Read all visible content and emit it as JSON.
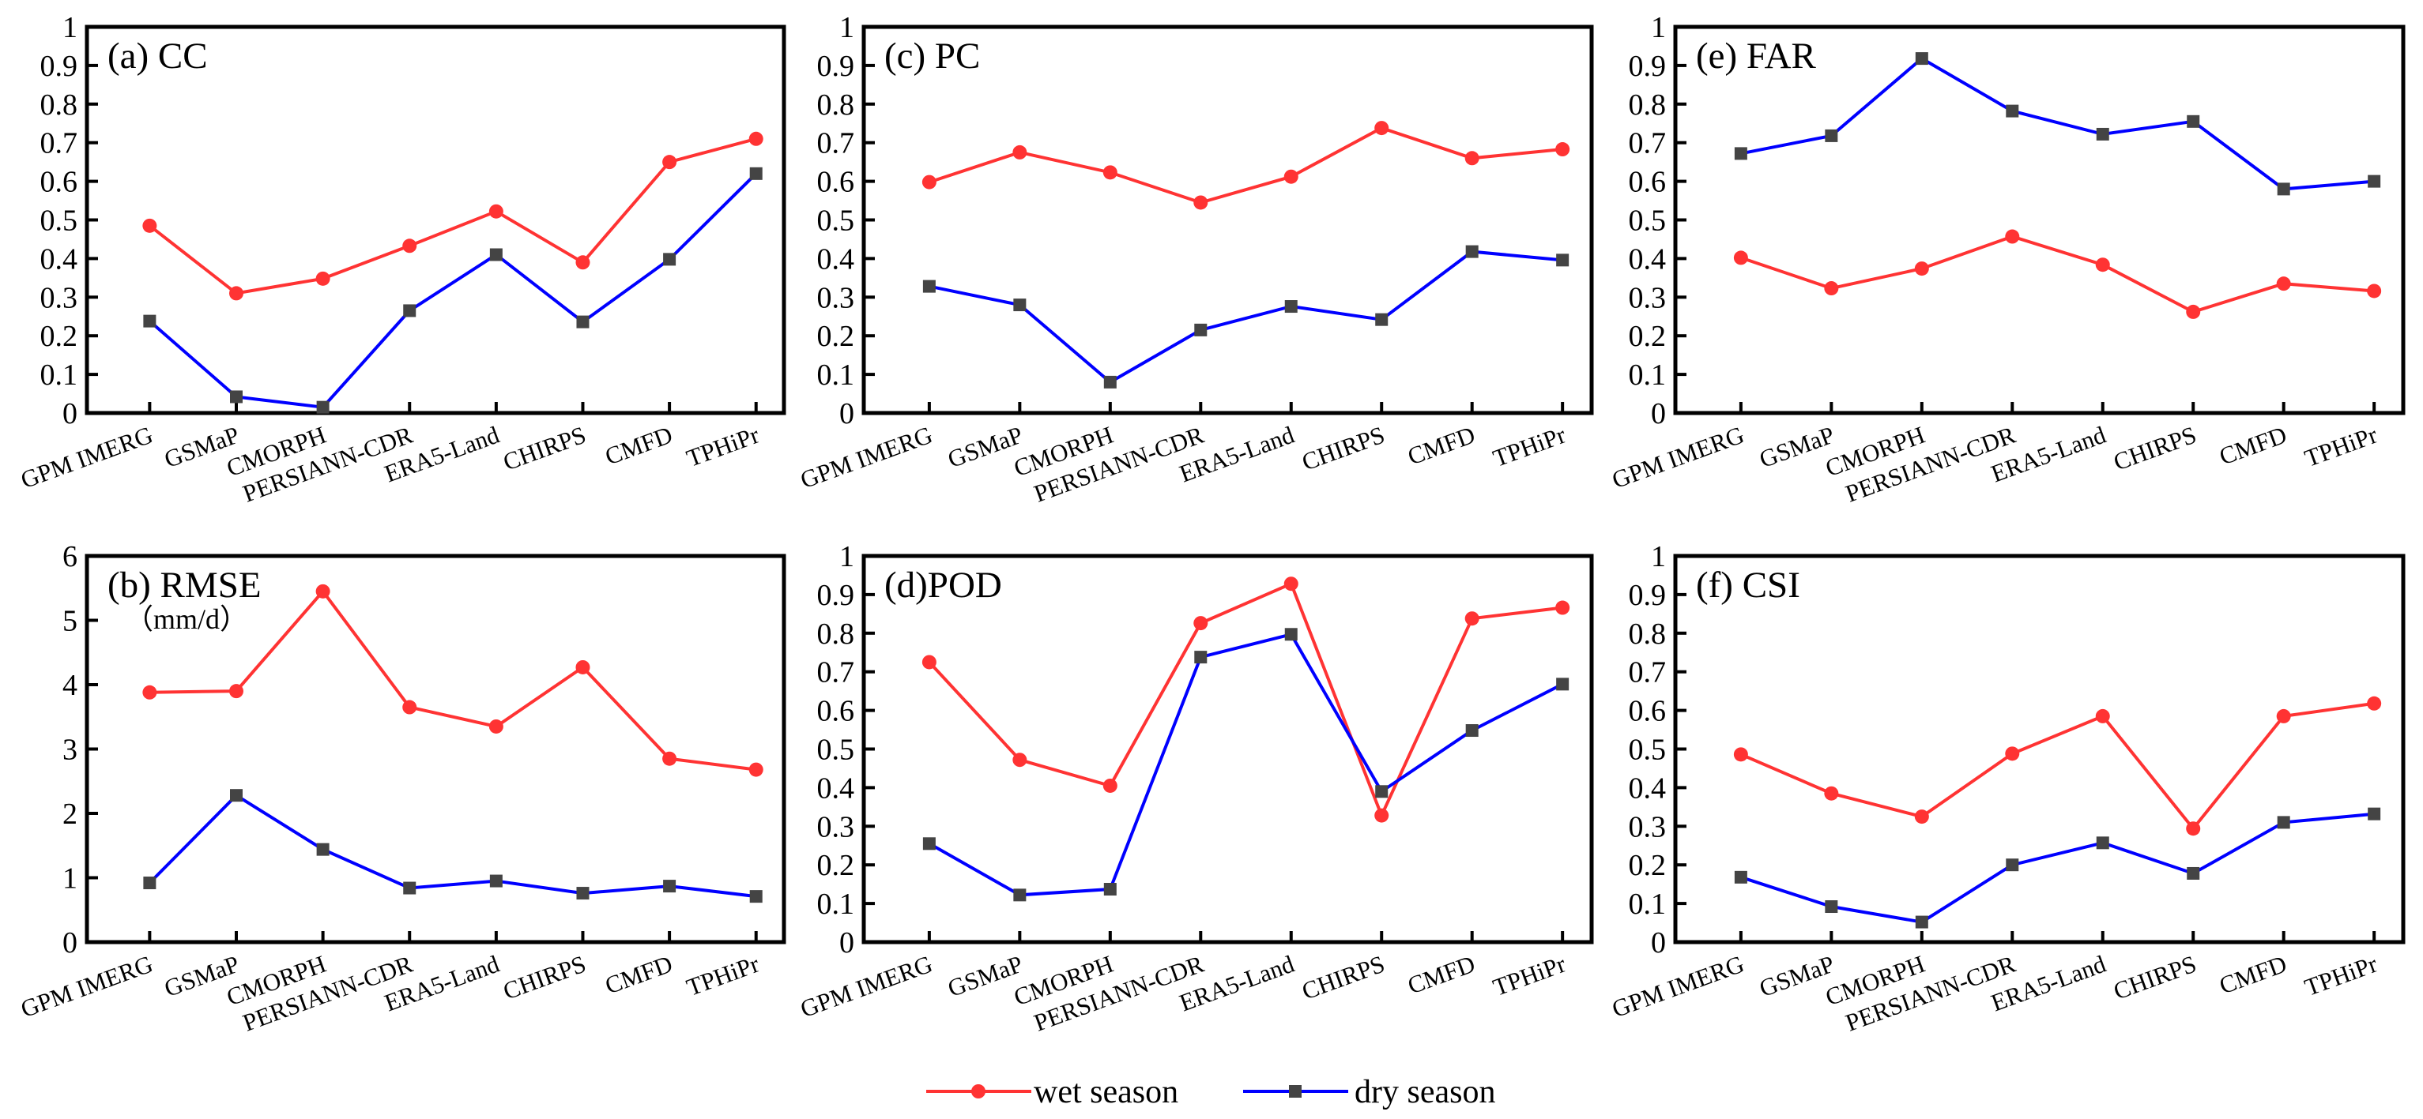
{
  "chart_data": [
    {
      "id": "a",
      "type": "line",
      "title": "(a) CC",
      "subtitle": "",
      "ylim": [
        0,
        1
      ],
      "yticks": [
        "0",
        "0.1",
        "0.2",
        "0.3",
        "0.4",
        "0.5",
        "0.6",
        "0.7",
        "0.8",
        "0.9",
        "1"
      ],
      "categories": [
        "GPM IMERG",
        "GSMaP",
        "CMORPH",
        "PERSIANN-CDR",
        "ERA5-Land",
        "CHIRPS",
        "CMFD",
        "TPHiPr"
      ],
      "series": [
        {
          "name": "wet season",
          "color": "#ff3333",
          "marker": "circle",
          "values": [
            0.485,
            0.31,
            0.348,
            0.433,
            0.522,
            0.39,
            0.65,
            0.71
          ]
        },
        {
          "name": "dry season",
          "color": "#0000ff",
          "marker": "square",
          "values": [
            0.238,
            0.042,
            0.015,
            0.265,
            0.41,
            0.236,
            0.398,
            0.62
          ]
        }
      ]
    },
    {
      "id": "c",
      "type": "line",
      "title": "(c) PC",
      "subtitle": "",
      "ylim": [
        0,
        1
      ],
      "yticks": [
        "0",
        "0.1",
        "0.2",
        "0.3",
        "0.4",
        "0.5",
        "0.6",
        "0.7",
        "0.8",
        "0.9",
        "1"
      ],
      "categories": [
        "GPM IMERG",
        "GSMaP",
        "CMORPH",
        "PERSIANN-CDR",
        "ERA5-Land",
        "CHIRPS",
        "CMFD",
        "TPHiPr"
      ],
      "series": [
        {
          "name": "wet season",
          "color": "#ff3333",
          "marker": "circle",
          "values": [
            0.598,
            0.675,
            0.623,
            0.545,
            0.612,
            0.738,
            0.66,
            0.683
          ]
        },
        {
          "name": "dry season",
          "color": "#0000ff",
          "marker": "square",
          "values": [
            0.328,
            0.28,
            0.08,
            0.215,
            0.276,
            0.242,
            0.418,
            0.396
          ]
        }
      ]
    },
    {
      "id": "e",
      "type": "line",
      "title": "(e) FAR",
      "subtitle": "",
      "ylim": [
        0,
        1
      ],
      "yticks": [
        "0",
        "0.1",
        "0.2",
        "0.3",
        "0.4",
        "0.5",
        "0.6",
        "0.7",
        "0.8",
        "0.9",
        "1"
      ],
      "categories": [
        "GPM IMERG",
        "GSMaP",
        "CMORPH",
        "PERSIANN-CDR",
        "ERA5-Land",
        "CHIRPS",
        "CMFD",
        "TPHiPr"
      ],
      "series": [
        {
          "name": "wet season",
          "color": "#ff3333",
          "marker": "circle",
          "values": [
            0.402,
            0.323,
            0.374,
            0.457,
            0.384,
            0.262,
            0.335,
            0.316
          ]
        },
        {
          "name": "dry season",
          "color": "#0000ff",
          "marker": "square",
          "values": [
            0.672,
            0.718,
            0.918,
            0.782,
            0.722,
            0.755,
            0.58,
            0.6
          ]
        }
      ]
    },
    {
      "id": "b",
      "type": "line",
      "title": "(b) RMSE",
      "subtitle": "（mm/d）",
      "ylim": [
        0,
        6
      ],
      "yticks": [
        "0",
        "1",
        "2",
        "3",
        "4",
        "5",
        "6"
      ],
      "categories": [
        "GPM IMERG",
        "GSMaP",
        "CMORPH",
        "PERSIANN-CDR",
        "ERA5-Land",
        "CHIRPS",
        "CMFD",
        "TPHiPr"
      ],
      "series": [
        {
          "name": "wet season",
          "color": "#ff3333",
          "marker": "circle",
          "values": [
            3.88,
            3.9,
            5.45,
            3.65,
            3.35,
            4.27,
            2.85,
            2.68
          ]
        },
        {
          "name": "dry season",
          "color": "#0000ff",
          "marker": "square",
          "values": [
            0.92,
            2.28,
            1.44,
            0.84,
            0.95,
            0.76,
            0.87,
            0.71
          ]
        }
      ]
    },
    {
      "id": "d",
      "type": "line",
      "title": "(d)POD",
      "subtitle": "",
      "ylim": [
        0,
        1
      ],
      "yticks": [
        "0",
        "0.1",
        "0.2",
        "0.3",
        "0.4",
        "0.5",
        "0.6",
        "0.7",
        "0.8",
        "0.9",
        "1"
      ],
      "categories": [
        "GPM IMERG",
        "GSMaP",
        "CMORPH",
        "PERSIANN-CDR",
        "ERA5-Land",
        "CHIRPS",
        "CMFD",
        "TPHiPr"
      ],
      "series": [
        {
          "name": "wet season",
          "color": "#ff3333",
          "marker": "circle",
          "values": [
            0.725,
            0.472,
            0.405,
            0.826,
            0.928,
            0.328,
            0.838,
            0.866
          ]
        },
        {
          "name": "dry season",
          "color": "#0000ff",
          "marker": "square",
          "values": [
            0.255,
            0.122,
            0.137,
            0.738,
            0.797,
            0.39,
            0.548,
            0.668
          ]
        }
      ]
    },
    {
      "id": "f",
      "type": "line",
      "title": "(f) CSI",
      "subtitle": "",
      "ylim": [
        0,
        1
      ],
      "yticks": [
        "0",
        "0.1",
        "0.2",
        "0.3",
        "0.4",
        "0.5",
        "0.6",
        "0.7",
        "0.8",
        "0.9",
        "1"
      ],
      "categories": [
        "GPM IMERG",
        "GSMaP",
        "CMORPH",
        "PERSIANN-CDR",
        "ERA5-Land",
        "CHIRPS",
        "CMFD",
        "TPHiPr"
      ],
      "series": [
        {
          "name": "wet season",
          "color": "#ff3333",
          "marker": "circle",
          "values": [
            0.486,
            0.385,
            0.325,
            0.488,
            0.585,
            0.294,
            0.585,
            0.618
          ]
        },
        {
          "name": "dry season",
          "color": "#0000ff",
          "marker": "square",
          "values": [
            0.168,
            0.092,
            0.052,
            0.2,
            0.257,
            0.178,
            0.31,
            0.332
          ]
        }
      ]
    }
  ],
  "legend": {
    "items": [
      {
        "label": "wet season",
        "color": "#ff3333",
        "marker": "circle"
      },
      {
        "label": "dry season",
        "color": "#0000ff",
        "marker": "square"
      }
    ]
  }
}
